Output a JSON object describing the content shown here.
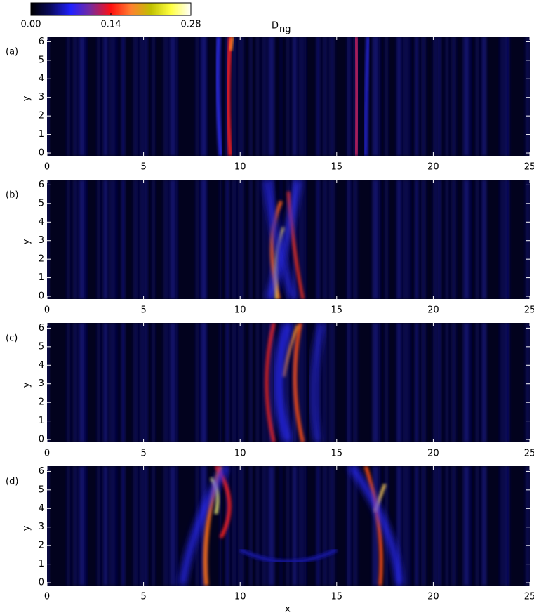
{
  "chart_data": [
    {
      "type": "heatmap",
      "panel_label": "(a)",
      "colorbar": {
        "label": "D",
        "label_sub": "ng",
        "lim": [
          0,
          0.28
        ],
        "ticks": [
          {
            "value": 0,
            "label": "0.00"
          },
          {
            "value": 0.14,
            "label": "0.14"
          },
          {
            "value": 0.28,
            "label": "0.28"
          }
        ],
        "colormap": [
          "#000000",
          "#0a0a60",
          "#2020ff",
          "#7a2a9a",
          "#ff1010",
          "#ff8030",
          "#c0c000",
          "#ffff40",
          "#ffffff"
        ]
      },
      "xlim": [
        0,
        25
      ],
      "xticks": [
        0,
        5,
        10,
        15,
        20,
        25
      ],
      "ylabel": "y",
      "ylim": [
        -0.15,
        6.28
      ],
      "yticks": [
        0,
        1,
        2,
        3,
        4,
        5,
        6
      ]
    },
    {
      "type": "heatmap",
      "panel_label": "(b)",
      "xlim": [
        0,
        25
      ],
      "xticks": [
        0,
        5,
        10,
        15,
        20,
        25
      ],
      "ylabel": "y",
      "ylim": [
        -0.15,
        6.28
      ],
      "yticks": [
        0,
        1,
        2,
        3,
        4,
        5,
        6
      ]
    },
    {
      "type": "heatmap",
      "panel_label": "(c)",
      "xlim": [
        0,
        25
      ],
      "xticks": [
        0,
        5,
        10,
        15,
        20,
        25
      ],
      "ylabel": "y",
      "ylim": [
        -0.15,
        6.28
      ],
      "yticks": [
        0,
        1,
        2,
        3,
        4,
        5,
        6
      ]
    },
    {
      "type": "heatmap",
      "panel_label": "(d)",
      "xlim": [
        0,
        25
      ],
      "xticks": [
        0,
        5,
        10,
        15,
        20,
        25
      ],
      "xlabel": "x",
      "ylabel": "y",
      "ylim": [
        -0.15,
        6.28
      ],
      "yticks": [
        0,
        1,
        2,
        3,
        4,
        5,
        6
      ]
    }
  ]
}
